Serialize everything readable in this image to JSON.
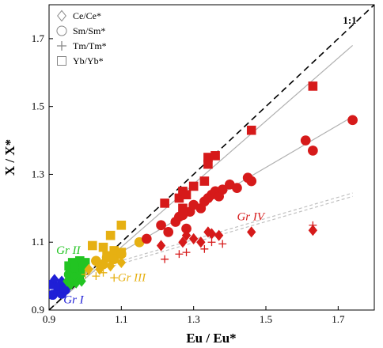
{
  "chart_data": {
    "type": "scatter",
    "title": "",
    "xlabel": "Eu / Eu*",
    "ylabel": "X / X*",
    "xlim": [
      0.9,
      1.8
    ],
    "ylim": [
      0.9,
      1.8
    ],
    "x_ticks": [
      "0.9",
      "1.1",
      "1.3",
      "1.5",
      "1.7"
    ],
    "y_ticks": [
      "0.9",
      "1.1",
      "1.3",
      "1.5",
      "1.7"
    ],
    "grid": false,
    "legend_position": "top-left",
    "legend": [
      {
        "name": "Ce/Ce*",
        "marker": "diamond"
      },
      {
        "name": "Sm/Sm*",
        "marker": "circle"
      },
      {
        "name": "Tm/Tm*",
        "marker": "plus"
      },
      {
        "name": "Yb/Yb*",
        "marker": "square"
      }
    ],
    "reference_line": {
      "label": "1:1",
      "from": [
        0.9,
        0.9
      ],
      "to": [
        1.8,
        1.8
      ],
      "style": "dashed",
      "color": "#000000"
    },
    "trend_lines": [
      {
        "from": [
          0.9,
          0.9
        ],
        "to": [
          1.74,
          1.68
        ],
        "style": "solid",
        "color": "#b0b0b0"
      },
      {
        "from": [
          0.93,
          0.965
        ],
        "to": [
          1.74,
          1.47
        ],
        "style": "solid",
        "color": "#b0b0b0"
      },
      {
        "from": [
          0.9,
          0.983
        ],
        "to": [
          1.74,
          1.245
        ],
        "style": "dashed",
        "color": "#c0c0c0"
      },
      {
        "from": [
          0.9,
          0.975
        ],
        "to": [
          1.74,
          1.235
        ],
        "style": "dashed",
        "color": "#c0c0c0"
      }
    ],
    "groups": [
      {
        "label": "Gr I",
        "color": "#1f1fd6",
        "label_at": [
          0.94,
          0.92
        ]
      },
      {
        "label": "Gr II",
        "color": "#22c422",
        "label_at": [
          0.92,
          1.065
        ]
      },
      {
        "label": "Gr III",
        "color": "#e6b012",
        "label_at": [
          1.09,
          0.985
        ]
      },
      {
        "label": "Gr IV",
        "color": "#d61a1a",
        "label_at": [
          1.42,
          1.165
        ]
      }
    ],
    "series": [
      {
        "group": "Gr I",
        "marker": "circle",
        "points": [
          [
            0.91,
            0.945
          ],
          [
            0.925,
            0.955
          ],
          [
            0.935,
            0.948
          ],
          [
            0.945,
            0.96
          ]
        ]
      },
      {
        "group": "Gr I",
        "marker": "square",
        "points": [
          [
            0.91,
            0.975
          ],
          [
            0.93,
            0.97
          ],
          [
            0.94,
            0.965
          ]
        ]
      },
      {
        "group": "Gr I",
        "marker": "diamond",
        "points": [
          [
            0.915,
            0.99
          ],
          [
            0.935,
            0.985
          ]
        ]
      },
      {
        "group": "Gr II",
        "marker": "circle",
        "points": [
          [
            0.955,
            1.005
          ],
          [
            0.965,
            1.01
          ],
          [
            0.97,
            0.995
          ],
          [
            0.975,
            1.015
          ],
          [
            0.98,
            1.0
          ],
          [
            0.99,
            1.02
          ],
          [
            0.96,
            1.0
          ],
          [
            0.985,
            1.005
          ]
        ]
      },
      {
        "group": "Gr II",
        "marker": "diamond",
        "points": [
          [
            0.95,
            0.985
          ],
          [
            0.96,
            0.975
          ],
          [
            0.965,
            0.99
          ],
          [
            0.975,
            0.98
          ],
          [
            0.98,
            0.99
          ],
          [
            0.99,
            0.985
          ],
          [
            0.97,
            1.0
          ]
        ]
      },
      {
        "group": "Gr II",
        "marker": "square",
        "points": [
          [
            0.955,
            1.03
          ],
          [
            0.965,
            1.04
          ],
          [
            0.975,
            1.035
          ],
          [
            0.985,
            1.045
          ],
          [
            0.99,
            1.03
          ],
          [
            1.0,
            1.04
          ],
          [
            0.97,
            1.025
          ]
        ]
      },
      {
        "group": "Gr II",
        "marker": "plus",
        "points": [
          [
            0.96,
            1.02
          ],
          [
            0.98,
            1.025
          ],
          [
            1.0,
            1.015
          ],
          [
            0.99,
            1.0
          ]
        ]
      },
      {
        "group": "Gr III",
        "marker": "square",
        "points": [
          [
            1.02,
            1.09
          ],
          [
            1.05,
            1.085
          ],
          [
            1.07,
            1.12
          ],
          [
            1.1,
            1.15
          ],
          [
            1.06,
            1.06
          ],
          [
            1.08,
            1.075
          ],
          [
            1.1,
            1.07
          ]
        ]
      },
      {
        "group": "Gr III",
        "marker": "circle",
        "points": [
          [
            1.03,
            1.045
          ],
          [
            1.06,
            1.055
          ],
          [
            1.08,
            1.05
          ],
          [
            1.1,
            1.065
          ],
          [
            1.15,
            1.1
          ],
          [
            1.05,
            1.035
          ]
        ]
      },
      {
        "group": "Gr III",
        "marker": "diamond",
        "points": [
          [
            1.01,
            1.02
          ],
          [
            1.04,
            1.03
          ],
          [
            1.07,
            1.03
          ],
          [
            1.1,
            1.04
          ],
          [
            1.04,
            1.02
          ]
        ]
      },
      {
        "group": "Gr III",
        "marker": "plus",
        "points": [
          [
            1.0,
            1.005
          ],
          [
            1.05,
            1.01
          ],
          [
            1.08,
            0.995
          ],
          [
            1.03,
            1.0
          ]
        ]
      },
      {
        "group": "Gr IV",
        "marker": "circle",
        "points": [
          [
            1.17,
            1.11
          ],
          [
            1.21,
            1.15
          ],
          [
            1.23,
            1.13
          ],
          [
            1.25,
            1.16
          ],
          [
            1.26,
            1.175
          ],
          [
            1.27,
            1.18
          ],
          [
            1.28,
            1.14
          ],
          [
            1.29,
            1.19
          ],
          [
            1.3,
            1.21
          ],
          [
            1.32,
            1.2
          ],
          [
            1.33,
            1.22
          ],
          [
            1.34,
            1.23
          ],
          [
            1.35,
            1.24
          ],
          [
            1.36,
            1.25
          ],
          [
            1.37,
            1.235
          ],
          [
            1.38,
            1.255
          ],
          [
            1.4,
            1.27
          ],
          [
            1.42,
            1.26
          ],
          [
            1.45,
            1.29
          ],
          [
            1.46,
            1.28
          ],
          [
            1.61,
            1.4
          ],
          [
            1.63,
            1.37
          ],
          [
            1.74,
            1.46
          ]
        ]
      },
      {
        "group": "Gr IV",
        "marker": "square",
        "points": [
          [
            1.22,
            1.215
          ],
          [
            1.26,
            1.23
          ],
          [
            1.27,
            1.25
          ],
          [
            1.28,
            1.24
          ],
          [
            1.3,
            1.265
          ],
          [
            1.34,
            1.35
          ],
          [
            1.34,
            1.33
          ],
          [
            1.36,
            1.355
          ],
          [
            1.46,
            1.43
          ],
          [
            1.63,
            1.56
          ],
          [
            1.27,
            1.2
          ],
          [
            1.33,
            1.28
          ]
        ]
      },
      {
        "group": "Gr IV",
        "marker": "diamond",
        "points": [
          [
            1.21,
            1.09
          ],
          [
            1.27,
            1.1
          ],
          [
            1.28,
            1.12
          ],
          [
            1.32,
            1.1
          ],
          [
            1.34,
            1.13
          ],
          [
            1.35,
            1.125
          ],
          [
            1.37,
            1.12
          ],
          [
            1.46,
            1.13
          ],
          [
            1.63,
            1.135
          ],
          [
            1.3,
            1.11
          ]
        ]
      },
      {
        "group": "Gr IV",
        "marker": "plus",
        "points": [
          [
            1.22,
            1.05
          ],
          [
            1.26,
            1.065
          ],
          [
            1.28,
            1.07
          ],
          [
            1.33,
            1.08
          ],
          [
            1.35,
            1.1
          ],
          [
            1.38,
            1.095
          ],
          [
            1.63,
            1.15
          ]
        ]
      }
    ]
  }
}
